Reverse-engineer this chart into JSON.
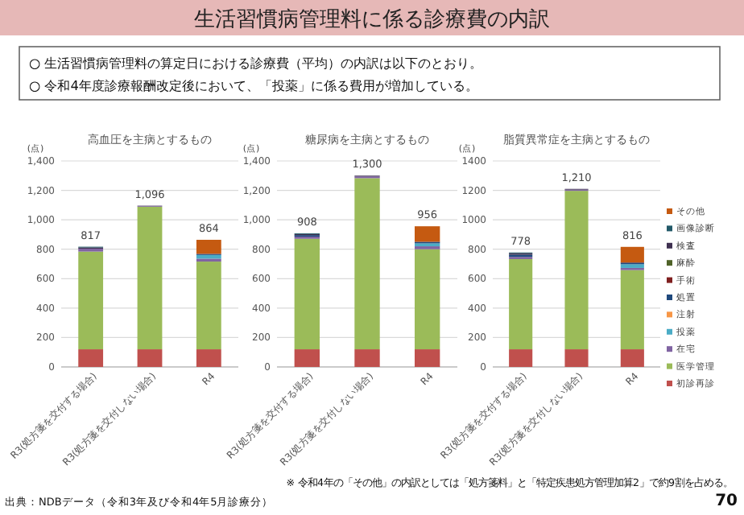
{
  "chart_data": [
    {
      "type": "bar",
      "title": "高血圧を主病とするもの",
      "ylabel": "(点)",
      "stacked": true,
      "categories": [
        "R3(処方箋を交付する場合)",
        "R3(処方箋を交付しない場合)",
        "R4"
      ],
      "ylim": [
        0,
        1400
      ],
      "yticks": [
        0,
        200,
        400,
        600,
        800,
        {
          "value": 1000,
          "label": "1,000"
        },
        {
          "value": 1200,
          "label": "1,200"
        },
        {
          "value": 1400,
          "label": "1,400"
        }
      ],
      "grid": "y",
      "legend": false,
      "totals": [
        "817",
        "1,096",
        "864"
      ],
      "annotations": [
        "生活習慣病管理料に係る診療費の内訳",
        "○ 生活習慣病管理料の算定日における診療費（平均）の内訳は以下のとおり。",
        "○ 令和4年度診療報酬改定後において、「投薬」に係る費用が増加している。",
        "出典：NDBデータ（令和3年及び令和4年5月診療分）"
      ],
      "series": [
        {
          "color": "#c0504d",
          "values": [
            120,
            120,
            120
          ]
        },
        {
          "color": "#9bbb59",
          "values": [
            664,
            969,
            596
          ]
        },
        {
          "color": "#8064a2",
          "values": [
            20,
            5,
            20
          ]
        },
        {
          "color": "#4bacc6",
          "values": [
            0,
            0,
            25
          ]
        },
        {
          "color": "#f79646",
          "values": [
            0,
            0,
            0
          ]
        },
        {
          "color": "#1f497d",
          "values": [
            0,
            0,
            5
          ]
        },
        {
          "color": "#7f1f1f",
          "values": [
            0,
            0,
            0
          ]
        },
        {
          "color": "#4f6228",
          "values": [
            0,
            0,
            0
          ]
        },
        {
          "color": "#3f3151",
          "values": [
            8,
            2,
            3
          ]
        },
        {
          "color": "#215968",
          "values": [
            5,
            0,
            0
          ]
        },
        {
          "color": "#c55a11",
          "values": [
            0,
            0,
            95
          ]
        }
      ]
    },
    {
      "type": "bar",
      "title": "糖尿病を主病とするもの",
      "ylabel": "(点)",
      "stacked": true,
      "categories": [
        "R3(処方箋を交付する場合)",
        "R3(処方箋を交付しない場合)",
        "R4"
      ],
      "ylim": [
        0,
        1400
      ],
      "yticks": [
        0,
        200,
        400,
        600,
        800,
        {
          "value": 1000,
          "label": "1,000"
        },
        {
          "value": 1200,
          "label": "1,200"
        },
        {
          "value": 1400,
          "label": "1,400"
        }
      ],
      "grid": "y",
      "legend": false,
      "totals": [
        "908",
        "1,300",
        "956"
      ],
      "series": [
        {
          "color": "#c0504d",
          "values": [
            120,
            120,
            120
          ]
        },
        {
          "color": "#9bbb59",
          "values": [
            751,
            1163,
            680
          ]
        },
        {
          "color": "#8064a2",
          "values": [
            15,
            12,
            20
          ]
        },
        {
          "color": "#4bacc6",
          "values": [
            0,
            0,
            20
          ]
        },
        {
          "color": "#f79646",
          "values": [
            0,
            0,
            0
          ]
        },
        {
          "color": "#1f497d",
          "values": [
            10,
            0,
            8
          ]
        },
        {
          "color": "#7f1f1f",
          "values": [
            0,
            0,
            0
          ]
        },
        {
          "color": "#4f6228",
          "values": [
            0,
            0,
            0
          ]
        },
        {
          "color": "#3f3151",
          "values": [
            7,
            5,
            3
          ]
        },
        {
          "color": "#215968",
          "values": [
            5,
            0,
            0
          ]
        },
        {
          "color": "#c55a11",
          "values": [
            0,
            0,
            105
          ]
        }
      ]
    },
    {
      "type": "bar",
      "title": "脂質異常症を主病とするもの",
      "ylabel": "(点)",
      "stacked": true,
      "categories": [
        "R3(処方箋を交付する場合)",
        "R3(処方箋を交付しない場合)",
        "R4"
      ],
      "ylim": [
        0,
        1400
      ],
      "yticks": [
        0,
        200,
        400,
        600,
        800,
        1000,
        1200,
        1400
      ],
      "grid": "y",
      "legend": "right",
      "totals": [
        "778",
        "1,210",
        "816"
      ],
      "annotations": [
        "※ 令和4年の「その他」の内訳としては「処方箋料」と「特定疾患処方管理加算2」で約9割を占める。",
        "70"
      ],
      "series": [
        {
          "name": "初診再診",
          "color": "#c0504d",
          "values": [
            120,
            120,
            120
          ]
        },
        {
          "name": "医学管理",
          "color": "#9bbb59",
          "values": [
            613,
            1077,
            538
          ]
        },
        {
          "name": "在宅",
          "color": "#8064a2",
          "values": [
            15,
            8,
            15
          ]
        },
        {
          "name": "投薬",
          "color": "#4bacc6",
          "values": [
            0,
            0,
            25
          ]
        },
        {
          "name": "注射",
          "color": "#f79646",
          "values": [
            0,
            0,
            0
          ]
        },
        {
          "name": "処置",
          "color": "#1f497d",
          "values": [
            15,
            0,
            8
          ]
        },
        {
          "name": "手術",
          "color": "#7f1f1f",
          "values": [
            0,
            0,
            0
          ]
        },
        {
          "name": "麻酔",
          "color": "#4f6228",
          "values": [
            0,
            0,
            0
          ]
        },
        {
          "name": "検査",
          "color": "#3f3151",
          "values": [
            10,
            5,
            4
          ]
        },
        {
          "name": "画像診断",
          "color": "#215968",
          "values": [
            5,
            0,
            0
          ]
        },
        {
          "name": "その他",
          "color": "#c55a11",
          "values": [
            0,
            0,
            106
          ]
        }
      ]
    }
  ]
}
